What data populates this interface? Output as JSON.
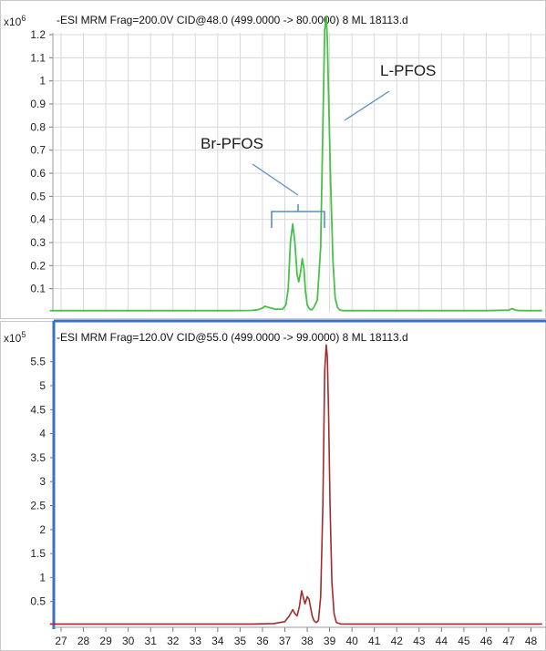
{
  "chart_data": [
    {
      "type": "line",
      "title": "-ESI MRM Frag=200.0V CID@48.0 (499.0000 -> 80.0000) 8 ML 18113.d",
      "y_multiplier_base": "x10",
      "y_multiplier_exp": "6",
      "ylim": [
        0,
        1.3
      ],
      "y_ticks": [
        0.1,
        0.2,
        0.3,
        0.4,
        0.5,
        0.6,
        0.7,
        0.8,
        0.9,
        1,
        1.1,
        1.2
      ],
      "y_tick_labels": [
        "0.1",
        "0.2",
        "0.3",
        "0.4",
        "0.5",
        "0.6",
        "0.7",
        "0.8",
        "0.9",
        "1",
        "1.1",
        "1.2"
      ],
      "grid": true,
      "line_color": "#4ac04a",
      "series": [
        {
          "x": [
            26.5,
            27.5,
            28.5,
            29.5,
            30.5,
            31.5,
            32.5,
            33.5,
            34.5,
            35.5,
            35.8,
            36.0,
            36.1,
            36.3,
            36.6,
            36.9,
            37.05,
            37.15,
            37.25,
            37.35,
            37.45,
            37.55,
            37.62,
            37.7,
            37.78,
            37.85,
            37.92,
            38.0,
            38.1,
            38.2,
            38.3,
            38.45,
            38.6,
            38.7,
            38.78,
            38.85,
            38.9,
            38.95,
            39.05,
            39.15,
            39.25,
            39.35,
            39.45,
            39.6,
            40,
            41,
            42,
            43,
            44,
            45,
            46,
            47,
            47.15,
            47.3,
            47.5,
            48.5
          ],
          "y": [
            0.005,
            0.005,
            0.005,
            0.005,
            0.005,
            0.005,
            0.005,
            0.005,
            0.005,
            0.006,
            0.009,
            0.016,
            0.024,
            0.018,
            0.011,
            0.012,
            0.03,
            0.1,
            0.3,
            0.38,
            0.3,
            0.16,
            0.13,
            0.17,
            0.23,
            0.19,
            0.09,
            0.03,
            0.012,
            0.008,
            0.02,
            0.05,
            0.28,
            0.8,
            1.22,
            1.28,
            1.18,
            0.95,
            0.55,
            0.22,
            0.06,
            0.02,
            0.008,
            0.005,
            0.005,
            0.005,
            0.005,
            0.005,
            0.005,
            0.005,
            0.005,
            0.007,
            0.014,
            0.007,
            0.005,
            0.005
          ]
        }
      ],
      "annotations": [
        {
          "text": "Br-PFOS",
          "x": 37.4,
          "y": 0.8
        },
        {
          "text": "L-PFOS",
          "x": 40.6,
          "y": 1.11
        }
      ]
    },
    {
      "type": "line",
      "title": "-ESI MRM Frag=120.0V CID@55.0 (499.0000 -> 99.0000) 8 ML 18113.d",
      "y_multiplier_base": "x10",
      "y_multiplier_exp": "5",
      "ylim": [
        0,
        6
      ],
      "y_ticks": [
        0.5,
        1,
        1.5,
        2,
        2.5,
        3,
        3.5,
        4,
        4.5,
        5,
        5.5
      ],
      "y_tick_labels": [
        "0.5",
        "1",
        "1.5",
        "2",
        "2.5",
        "3",
        "3.5",
        "4",
        "4.5",
        "5",
        "5.5"
      ],
      "grid": false,
      "line_color": "#a52a2a",
      "x_ticks": [
        27,
        28,
        29,
        30,
        31,
        32,
        33,
        34,
        35,
        36,
        37,
        38,
        39,
        40,
        41,
        42,
        43,
        44,
        45,
        46,
        47,
        48
      ],
      "x_tick_labels": [
        "27",
        "28",
        "29",
        "30",
        "31",
        "32",
        "33",
        "34",
        "35",
        "36",
        "37",
        "38",
        "39",
        "40",
        "41",
        "42",
        "43",
        "44",
        "45",
        "46",
        "47",
        "48"
      ],
      "xlim": [
        26.5,
        48.5
      ],
      "series": [
        {
          "x": [
            26.5,
            28,
            30,
            32,
            34,
            35.5,
            36.5,
            37.0,
            37.2,
            37.35,
            37.45,
            37.55,
            37.65,
            37.75,
            37.82,
            37.9,
            38.0,
            38.08,
            38.15,
            38.22,
            38.3,
            38.4,
            38.5,
            38.6,
            38.7,
            38.78,
            38.85,
            38.9,
            38.95,
            39.02,
            39.1,
            39.2,
            39.3,
            39.5,
            40,
            42,
            44,
            46,
            48,
            48.5
          ],
          "y": [
            0.03,
            0.03,
            0.03,
            0.03,
            0.03,
            0.03,
            0.04,
            0.08,
            0.2,
            0.33,
            0.25,
            0.2,
            0.4,
            0.72,
            0.6,
            0.45,
            0.6,
            0.55,
            0.38,
            0.2,
            0.1,
            0.06,
            0.1,
            0.6,
            2.5,
            5.3,
            5.85,
            5.6,
            4.5,
            2.5,
            0.9,
            0.25,
            0.06,
            0.03,
            0.03,
            0.03,
            0.03,
            0.03,
            0.03,
            0.03
          ]
        }
      ]
    }
  ]
}
